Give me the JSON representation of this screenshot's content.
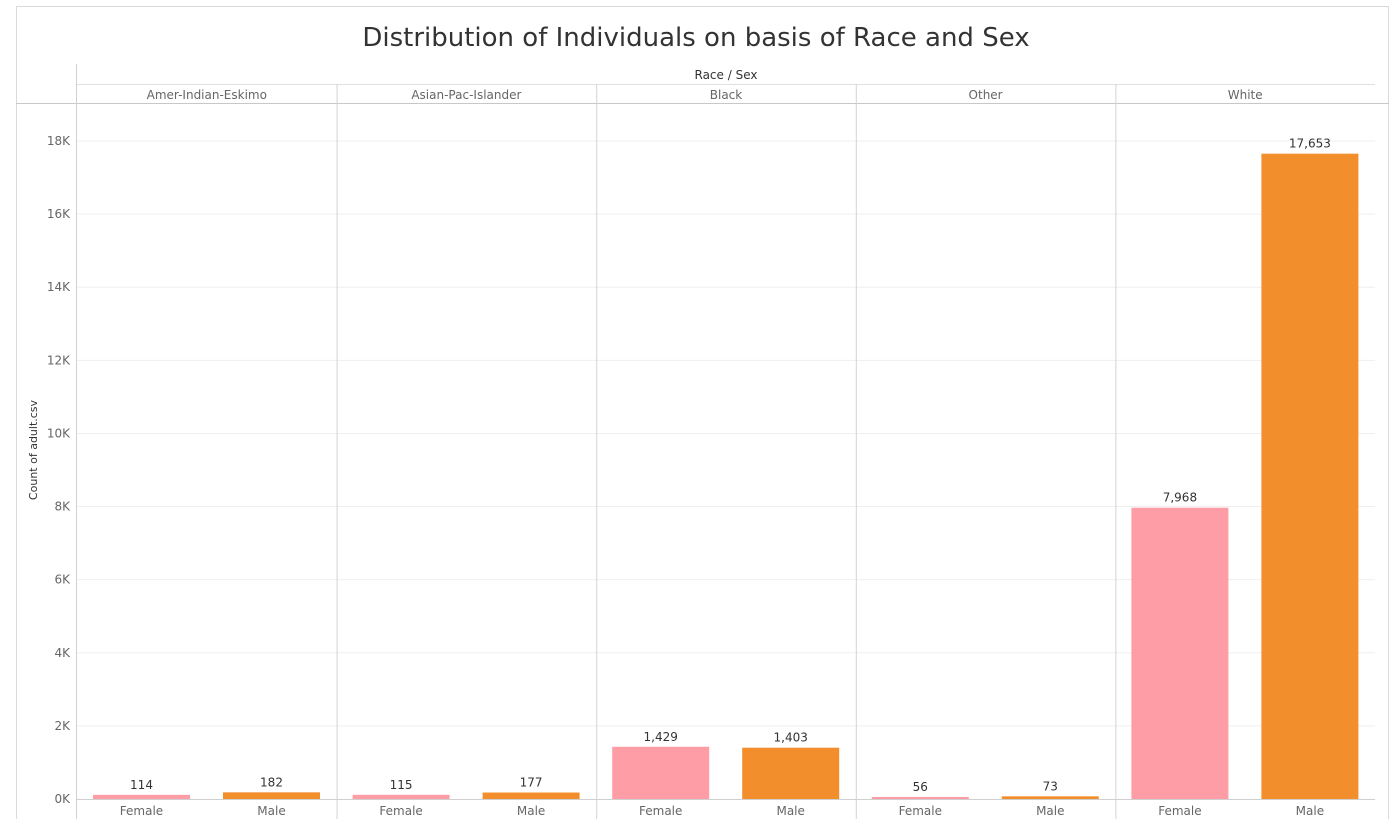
{
  "chart_data": {
    "type": "bar",
    "title": "Distribution of Individuals on basis of Race and Sex",
    "header": "Race / Sex",
    "ylabel": "Count of adult.csv",
    "ylim": [
      0,
      19000
    ],
    "yticks": [
      0,
      2000,
      4000,
      6000,
      8000,
      10000,
      12000,
      14000,
      16000,
      18000
    ],
    "ytick_labels": [
      "0K",
      "2K",
      "4K",
      "6K",
      "8K",
      "10K",
      "12K",
      "14K",
      "16K",
      "18K"
    ],
    "grid": true,
    "groups": [
      {
        "race": "Amer-Indian-Eskimo",
        "bars": [
          {
            "sex": "Female",
            "value": 114,
            "label": "114"
          },
          {
            "sex": "Male",
            "value": 182,
            "label": "182"
          }
        ]
      },
      {
        "race": "Asian-Pac-Islander",
        "bars": [
          {
            "sex": "Female",
            "value": 115,
            "label": "115"
          },
          {
            "sex": "Male",
            "value": 177,
            "label": "177"
          }
        ]
      },
      {
        "race": "Black",
        "bars": [
          {
            "sex": "Female",
            "value": 1429,
            "label": "1,429"
          },
          {
            "sex": "Male",
            "value": 1403,
            "label": "1,403"
          }
        ]
      },
      {
        "race": "Other",
        "bars": [
          {
            "sex": "Female",
            "value": 56,
            "label": "56"
          },
          {
            "sex": "Male",
            "value": 73,
            "label": "73"
          }
        ]
      },
      {
        "race": "White",
        "bars": [
          {
            "sex": "Female",
            "value": 7968,
            "label": "7,968"
          },
          {
            "sex": "Male",
            "value": 17653,
            "label": "17,653"
          }
        ]
      }
    ],
    "colors": {
      "Female": "#ff9da7",
      "Male": "#f28e2b"
    }
  }
}
